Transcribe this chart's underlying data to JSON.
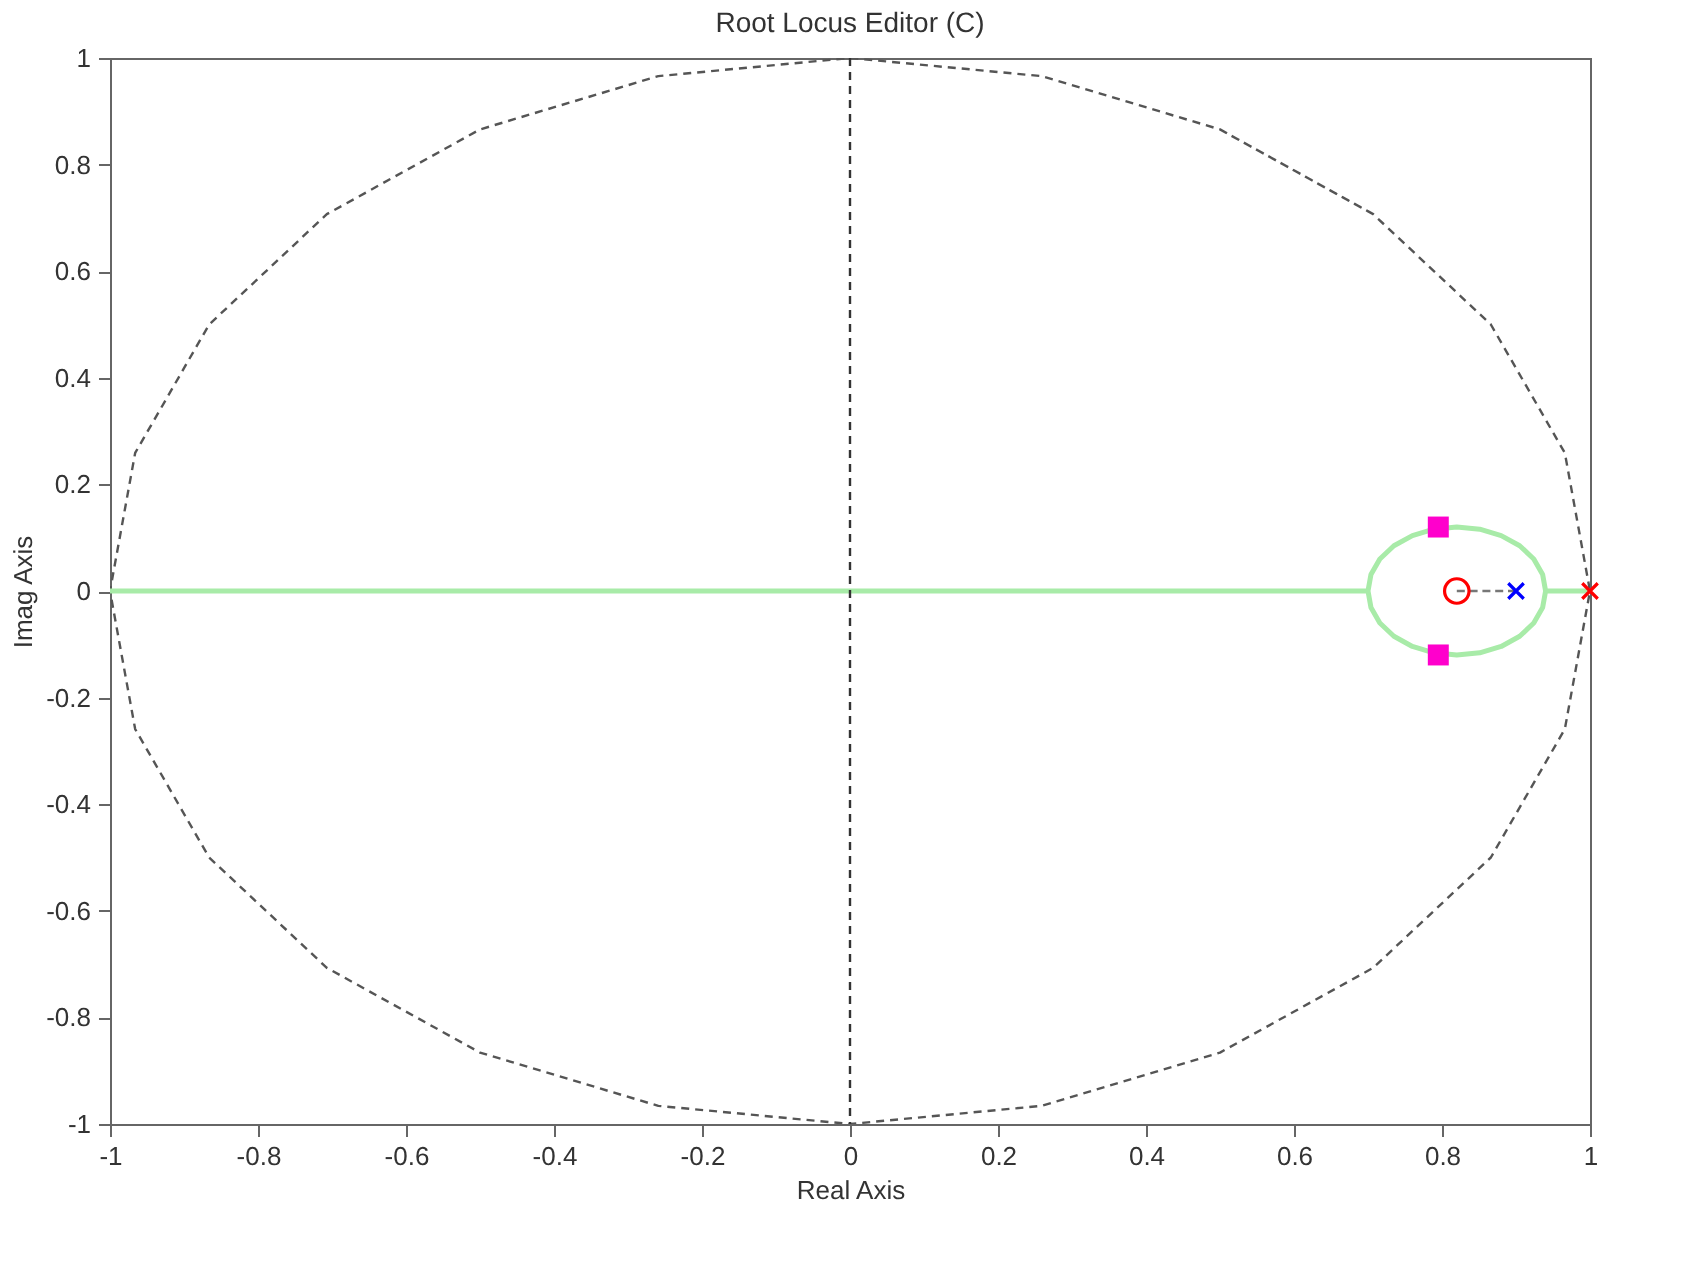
{
  "chart_data": {
    "type": "line",
    "title": "Root Locus Editor (C)",
    "xlabel": "Real Axis",
    "ylabel": "Imag Axis",
    "xlim": [
      -1,
      1
    ],
    "ylim": [
      -1,
      1
    ],
    "xticks": [
      -1,
      -0.8,
      -0.6,
      -0.4,
      -0.2,
      0,
      0.2,
      0.4,
      0.6,
      0.8,
      1
    ],
    "yticks": [
      -1,
      -0.8,
      -0.6,
      -0.4,
      -0.2,
      0,
      0.2,
      0.4,
      0.6,
      0.8,
      1
    ],
    "grid": false,
    "ref_lines": [
      {
        "axis": "x",
        "value": 0,
        "color": "#333333",
        "line_style": "dashed"
      }
    ],
    "series": [
      {
        "color": "#555555",
        "line_style": "dashed",
        "x": [
          0.707,
          0.5,
          0.259,
          0,
          -0.259,
          -0.5,
          -0.707,
          -0.866,
          -0.966,
          -1,
          -0.966,
          -0.866,
          -0.707,
          -0.5,
          -0.259,
          0,
          0.259,
          0.5,
          0.707,
          0.866,
          0.966,
          1,
          0.966,
          0.866,
          0.707,
          0.5
        ],
        "values": [
          0.707,
          0.866,
          0.966,
          1,
          0.966,
          0.866,
          0.707,
          0.5,
          0.259,
          0,
          -0.259,
          -0.5,
          -0.707,
          -0.866,
          -0.966,
          -1,
          -0.966,
          -0.866,
          -0.707,
          -0.5,
          -0.259,
          0,
          0.259,
          0.5,
          0.707,
          0.866
        ]
      },
      {
        "color": "#a8eba8",
        "line_style": "solid",
        "x": [
          -1,
          0.7,
          0.704,
          0.716,
          0.735,
          0.76,
          0.789,
          0.82,
          0.851,
          0.88,
          0.905,
          0.924,
          0.936,
          0.94,
          1,
          0.94,
          0.936,
          0.924,
          0.905,
          0.88,
          0.851,
          0.82,
          0.789,
          0.76,
          0.735,
          0.716,
          0.704,
          0.7
        ],
        "values": [
          0,
          0,
          0.031,
          0.06,
          0.085,
          0.104,
          0.116,
          0.12,
          0.116,
          0.104,
          0.085,
          0.06,
          0.031,
          0,
          0,
          0,
          -0.031,
          -0.06,
          -0.085,
          -0.104,
          -0.116,
          -0.12,
          -0.116,
          -0.104,
          -0.085,
          -0.06,
          -0.031,
          0
        ]
      },
      {
        "color": "#777777",
        "line_style": "dashed",
        "x": [
          0.82,
          0.9
        ],
        "values": [
          0,
          0
        ]
      },
      {
        "type": "scatter",
        "color": "#ff00cc",
        "marker": "square",
        "x": [
          0.795,
          0.795
        ],
        "values": [
          0.12,
          -0.12
        ]
      },
      {
        "type": "scatter",
        "color": "#ff0000",
        "marker": "circle",
        "x": [
          0.82
        ],
        "values": [
          0
        ]
      },
      {
        "type": "scatter",
        "color": "#0000ff",
        "marker": "cross",
        "x": [
          0.9
        ],
        "values": [
          0
        ]
      },
      {
        "type": "scatter",
        "color": "#ff0000",
        "marker": "cross",
        "x": [
          1
        ],
        "values": [
          0
        ]
      }
    ]
  }
}
